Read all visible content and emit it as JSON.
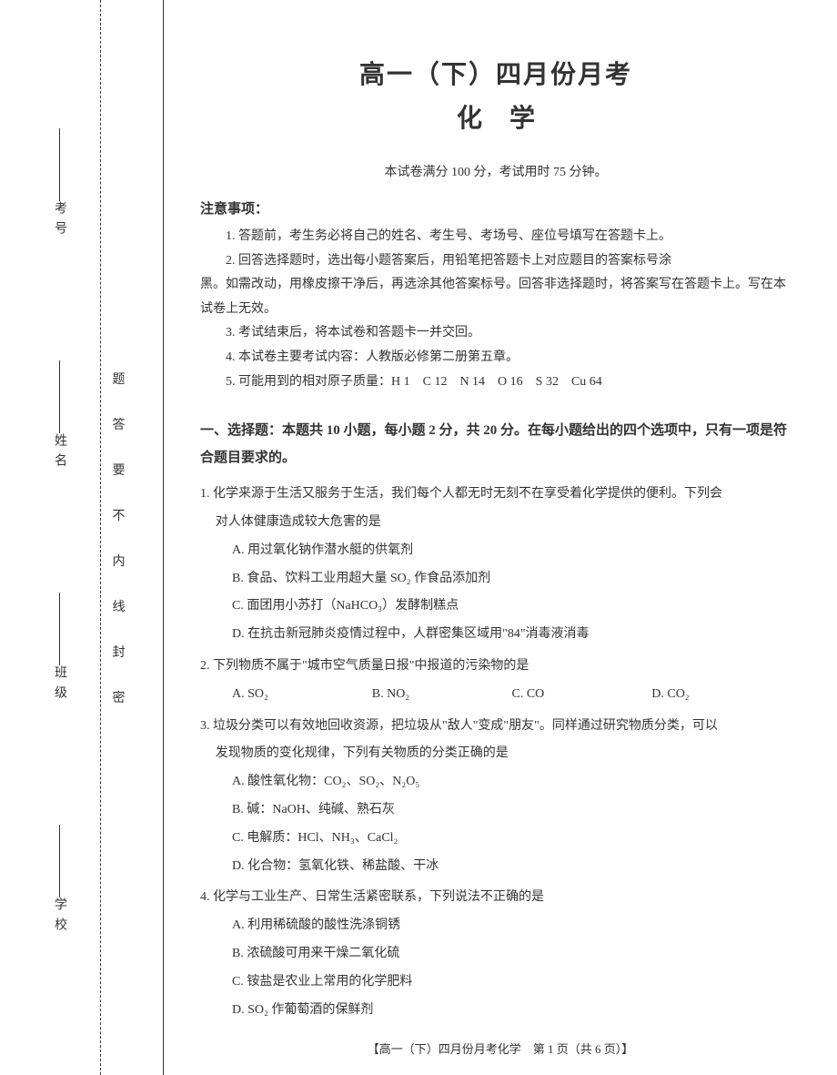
{
  "sidebar": {
    "labels": [
      "考号",
      "姓名",
      "班级",
      "学校"
    ],
    "seal_text": [
      "题",
      "答",
      "要",
      "不",
      "内",
      "线",
      "封",
      "密"
    ]
  },
  "header": {
    "title_main": "高一（下）四月份月考",
    "title_sub": "化学",
    "exam_info": "本试卷满分 100 分，考试用时 75 分钟。"
  },
  "notice": {
    "title": "注意事项：",
    "items": [
      "1. 答题前，考生务必将自己的姓名、考生号、考场号、座位号填写在答题卡上。",
      "2. 回答选择题时，选出每小题答案后，用铅笔把答题卡上对应题目的答案标号涂",
      "3. 考试结束后，将本试卷和答题卡一并交回。",
      "4. 本试卷主要考试内容：人教版必修第二册第五章。",
      "5. 可能用到的相对原子质量：H 1　C 12　N 14　O 16　S 32　Cu 64"
    ],
    "item2_continue": "黑。如需改动，用橡皮擦干净后，再选涂其他答案标号。回答非选择题时，将答案写在答题卡上。写在本试卷上无效。"
  },
  "section1": {
    "title": "一、选择题：本题共 10 小题，每小题 2 分，共 20 分。在每小题给出的四个选项中，只有一项是符合题目要求的。"
  },
  "q1": {
    "text": "1. 化学来源于生活又服务于生活，我们每个人都无时无刻不在享受着化学提供的便利。下列会",
    "text_continue": "对人体健康造成较大危害的是",
    "optA": "A. 用过氧化钠作潜水艇的供氧剂",
    "optB": "B. 食品、饮料工业用超大量 SO₂ 作食品添加剂",
    "optC": "C. 面团用小苏打（NaHCO₃）发酵制糕点",
    "optD": "D. 在抗击新冠肺炎疫情过程中，人群密集区域用\"84\"消毒液消毒"
  },
  "q2": {
    "text": "2. 下列物质不属于\"城市空气质量日报\"中报道的污染物的是",
    "optA": "A. SO₂",
    "optB": "B. NO₂",
    "optC": "C. CO",
    "optD": "D. CO₂"
  },
  "q3": {
    "text": "3. 垃圾分类可以有效地回收资源，把垃圾从\"敌人\"变成\"朋友\"。同样通过研究物质分类，可以",
    "text_continue": "发现物质的变化规律，下列有关物质的分类正确的是",
    "optA": "A. 酸性氧化物：CO₂、SO₂、N₂O₅",
    "optB": "B. 碱：NaOH、纯碱、熟石灰",
    "optC": "C. 电解质：HCl、NH₃、CaCl₂",
    "optD": "D. 化合物：氢氧化铁、稀盐酸、干冰"
  },
  "q4": {
    "text": "4. 化学与工业生产、日常生活紧密联系，下列说法不正确的是",
    "optA": "A. 利用稀硫酸的酸性洗涤铜锈",
    "optB": "B. 浓硫酸可用来干燥二氧化硫",
    "optC": "C. 铵盐是农业上常用的化学肥料",
    "optD": "D. SO₂ 作葡萄酒的保鲜剂"
  },
  "footer": {
    "text": "【高一（下）四月份月考化学　第 1 页（共 6 页）】"
  }
}
